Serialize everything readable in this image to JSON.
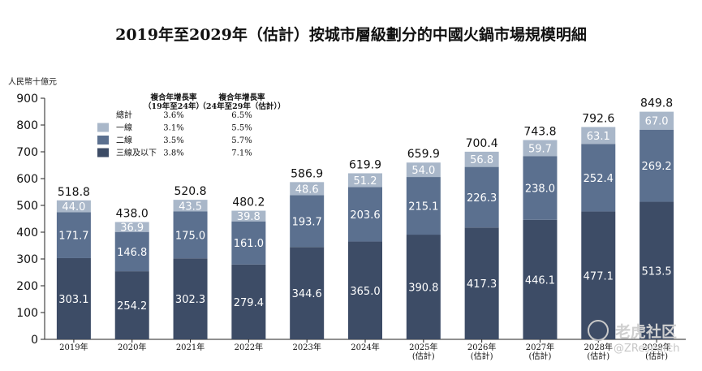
{
  "title": "2019年至2029年（估計）按城市層級劃分的中國火鍋市場規模明細",
  "watermark": {
    "brand": "老虎社区",
    "sub": "@ZResearch"
  },
  "colors": {
    "tier1": "#a9b7c9",
    "tier2": "#5b708f",
    "tier3": "#3d4c66",
    "axis": "#222222"
  },
  "chart_data": {
    "type": "bar",
    "stacked": true,
    "ylabel": "人民幣十億元",
    "ylim": [
      0,
      900
    ],
    "yticks": [
      0,
      100,
      200,
      300,
      400,
      500,
      600,
      700,
      800,
      900
    ],
    "categories": [
      "2019年",
      "2020年",
      "2021年",
      "2022年",
      "2023年",
      "2024年",
      "2025年\n(估計)",
      "2026年\n(估計)",
      "2027年\n(估計)",
      "2028年\n(估計)",
      "2029年\n(估計)"
    ],
    "series": [
      {
        "name": "三線及以下",
        "values": [
          303.1,
          254.2,
          302.3,
          279.4,
          344.6,
          365.0,
          390.8,
          417.3,
          446.1,
          477.1,
          513.5
        ]
      },
      {
        "name": "二線",
        "values": [
          171.7,
          146.8,
          175.0,
          161.0,
          193.7,
          203.6,
          215.1,
          226.3,
          238.0,
          252.4,
          269.2
        ]
      },
      {
        "name": "一線",
        "values": [
          44.0,
          36.9,
          43.5,
          39.8,
          48.6,
          51.2,
          54.0,
          56.8,
          59.7,
          63.1,
          67.0
        ]
      }
    ],
    "series_labels": [
      [
        "303.1",
        "254.2",
        "302.3",
        "279.4",
        "344.6",
        "365.0",
        "390.8",
        "417.3",
        "446.1",
        "477.1",
        "513.5"
      ],
      [
        "171.7",
        "146.8",
        "175.0",
        "161.0",
        "193.7",
        "203.6",
        "215.1",
        "226.3",
        "238.0",
        "252.4",
        "269.2"
      ],
      [
        "44.0",
        "36.9",
        "43.5",
        "39.8",
        "48.6",
        "51.2",
        "54.0",
        "56.8",
        "59.7",
        "63.1",
        "67.0"
      ]
    ],
    "totals": [
      "518.8",
      "438.0",
      "520.8",
      "480.2",
      "586.9",
      "619.9",
      "659.9",
      "700.4",
      "743.8",
      "792.6",
      "849.8"
    ],
    "legend": {
      "placement": "top-left",
      "col1_header": [
        "複合年增長率",
        "（19年至24年）"
      ],
      "col2_header": [
        "複合年增長率",
        "（24年至29年（估計））"
      ],
      "rows": [
        {
          "label": "總計",
          "cagr1": "3.6%",
          "cagr2": "6.5%",
          "swatch": ""
        },
        {
          "label": "一線",
          "cagr1": "3.1%",
          "cagr2": "5.5%",
          "swatch": "tier1"
        },
        {
          "label": "二線",
          "cagr1": "3.5%",
          "cagr2": "5.7%",
          "swatch": "tier2"
        },
        {
          "label": "三線及以下",
          "cagr1": "3.8%",
          "cagr2": "7.1%",
          "swatch": "tier3"
        }
      ]
    }
  }
}
